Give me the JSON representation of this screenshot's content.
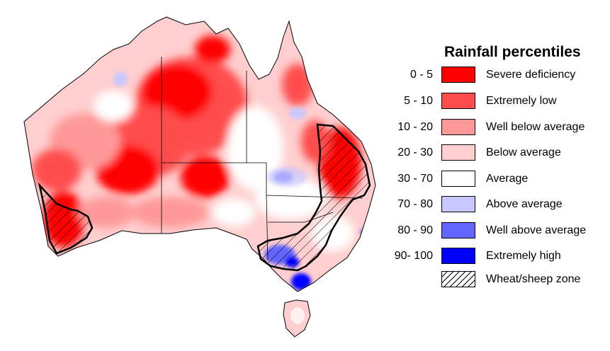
{
  "legend": {
    "title": "Rainfall percentiles",
    "items": [
      {
        "range": "0 - 5",
        "label": "Severe deficiency",
        "color": "#ff0000"
      },
      {
        "range": "5 - 10",
        "label": "Extremely low",
        "color": "#ff4d4d"
      },
      {
        "range": "10 - 20",
        "label": "Well below average",
        "color": "#ff9999"
      },
      {
        "range": "20 - 30",
        "label": "Below average",
        "color": "#ffcfcf"
      },
      {
        "range": "30 - 70",
        "label": "Average",
        "color": "#ffffff"
      },
      {
        "range": "70 - 80",
        "label": "Above average",
        "color": "#c8c8ff"
      },
      {
        "range": "80 - 90",
        "label": "Well above average",
        "color": "#6464ff"
      },
      {
        "range": "90- 100",
        "label": "Extremely high",
        "color": "#0000ff"
      }
    ],
    "zone": {
      "label": "Wheat/sheep zone"
    }
  }
}
